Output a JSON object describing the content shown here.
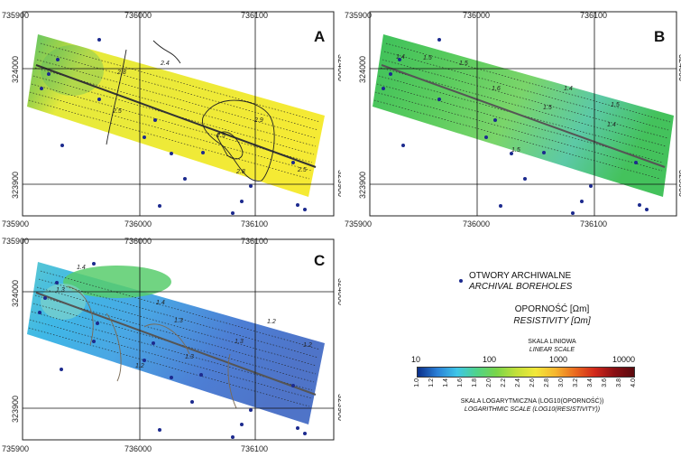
{
  "panels": [
    {
      "letter": "A",
      "top_ticks": [
        "735900",
        "736000",
        "736100"
      ],
      "bottom_ticks": [
        "735900",
        "736000",
        "736100"
      ],
      "left_ticks": [
        "324000",
        "323900"
      ],
      "right_ticks": [
        "324000",
        "323900"
      ],
      "contour_labels": [
        "2.8",
        "2.5",
        "2.4",
        "2.5",
        "2.9",
        "2.8",
        "2.5"
      ]
    },
    {
      "letter": "B",
      "top_ticks": [
        "735900",
        "736000",
        "736100"
      ],
      "bottom_ticks": [
        "735900",
        "736000",
        "736100"
      ],
      "left_ticks": [
        "324000",
        "323900"
      ],
      "right_ticks": [
        "324000",
        "323900"
      ],
      "contour_labels": [
        "1.5",
        "1.4",
        "1.5",
        "1.6",
        "1.5",
        "1.4",
        "1.5",
        "1.5",
        "1.4"
      ]
    },
    {
      "letter": "C",
      "top_ticks": [
        "735900",
        "736000",
        "736100"
      ],
      "bottom_ticks": [
        "735900",
        "736000",
        "736100"
      ],
      "left_ticks": [
        "324000",
        "323900"
      ],
      "right_ticks": [
        "324000",
        "323900"
      ],
      "contour_labels": [
        "1.4",
        "1.3",
        "1.4",
        "1.3",
        "1.3",
        "1.2",
        "1.3",
        "1.2",
        "1.2"
      ]
    }
  ],
  "legend": {
    "boreholes_pl": "OTWORY ARCHIWALNE",
    "boreholes_en": "ARCHIVAL BOREHOLES",
    "resistivity_pl": "OPORNOŚĆ [Ωm]",
    "resistivity_en": "RESISTIVITY [Ωm]",
    "linear_scale_pl": "SKALA LINIOWA",
    "linear_scale_en": "LINEAR SCALE",
    "linear_ticks": [
      "10",
      "100",
      "1000",
      "10000"
    ],
    "log_ticks": [
      "1.0",
      "1.2",
      "1.4",
      "1.6",
      "1.8",
      "2.0",
      "2.2",
      "2.4",
      "2.6",
      "2.8",
      "3.0",
      "3.2",
      "3.4",
      "3.6",
      "3.8",
      "4.0"
    ],
    "log_scale_pl": "SKALA LOGARYTMICZNA (LOG10(OPORNOŚĆ))",
    "log_scale_en": "LOGARITHMIC SCALE (LOG10(RESISTIVITY))",
    "colors": [
      "#0b2f8a",
      "#2a7fd6",
      "#3ec6e8",
      "#4fd38a",
      "#79d54a",
      "#c2e03a",
      "#f2e83a",
      "#f5b52e",
      "#ea6a1f",
      "#d1281b",
      "#8a0f14",
      "#5a0a0e"
    ]
  }
}
